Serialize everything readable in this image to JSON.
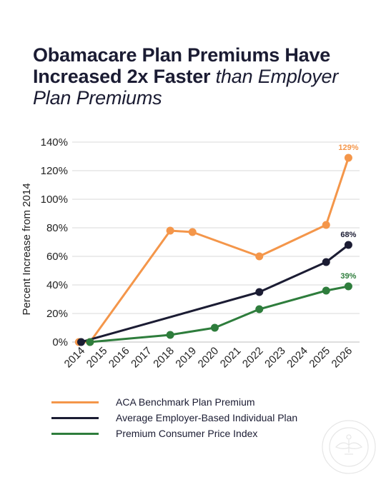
{
  "title": {
    "bold": "Obamacare Plan Premiums Have Increased 2x Faster",
    "italic": "than Employer Plan Premiums"
  },
  "colors": {
    "aca": "#f4964a",
    "employer": "#1b1c33",
    "cpi": "#2e7d3c",
    "grid": "#d9d9d9"
  },
  "chart_data": {
    "type": "line",
    "title": "Obamacare Plan Premiums Have Increased 2x Faster than Employer Plan Premiums",
    "xlabel": "",
    "ylabel": "Percent Increase from 2014",
    "x": [
      "2014",
      "2015",
      "2016",
      "2017",
      "2018",
      "2019",
      "2020",
      "2021",
      "2022",
      "2023",
      "2024",
      "2025",
      "2026"
    ],
    "ylim": [
      0,
      140
    ],
    "yticks": [
      "0%",
      "20%",
      "40%",
      "60%",
      "80%",
      "100%",
      "120%",
      "140%"
    ],
    "grid": true,
    "legend_position": "bottom",
    "series": [
      {
        "name": "ACA Benchmark Plan Premium",
        "color": "#f4964a",
        "points": [
          {
            "x": 2013.9,
            "y": 0
          },
          {
            "x": 2014.4,
            "y": 0
          },
          {
            "x": 2018,
            "y": 78
          },
          {
            "x": 2019,
            "y": 77
          },
          {
            "x": 2022,
            "y": 60
          },
          {
            "x": 2025,
            "y": 82
          },
          {
            "x": 2026,
            "y": 129
          }
        ],
        "end_label": "129%"
      },
      {
        "name": "Average Employer-Based Individual Plan",
        "color": "#1b1c33",
        "points": [
          {
            "x": 2014,
            "y": 0
          },
          {
            "x": 2022,
            "y": 35
          },
          {
            "x": 2025,
            "y": 56
          },
          {
            "x": 2026,
            "y": 68
          }
        ],
        "end_label": "68%"
      },
      {
        "name": "Premium Consumer Price Index",
        "color": "#2e7d3c",
        "points": [
          {
            "x": 2014.4,
            "y": 0
          },
          {
            "x": 2018,
            "y": 5
          },
          {
            "x": 2020,
            "y": 10
          },
          {
            "x": 2022,
            "y": 23
          },
          {
            "x": 2025,
            "y": 36
          },
          {
            "x": 2026,
            "y": 39
          }
        ],
        "end_label": "39%"
      }
    ]
  }
}
